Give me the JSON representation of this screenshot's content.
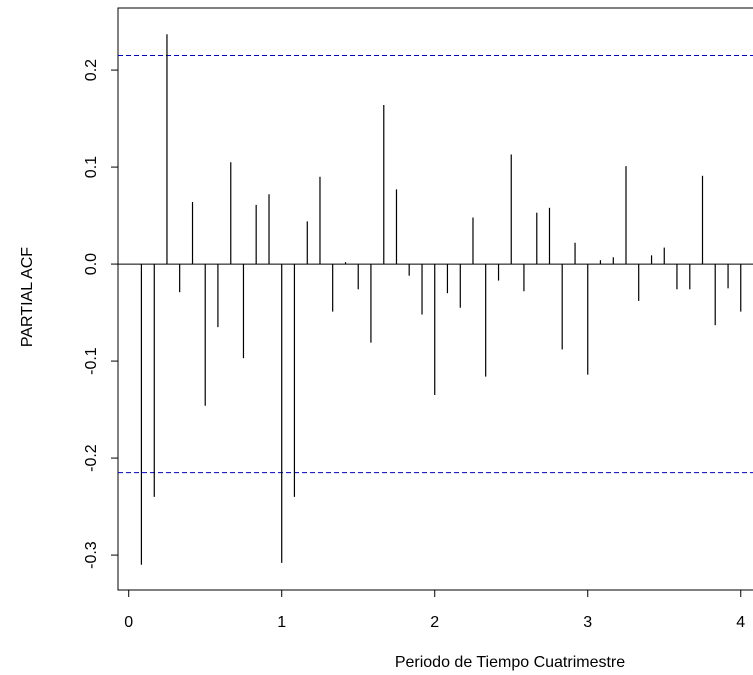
{
  "chart_data": {
    "type": "bar",
    "x_label": "Periodo de Tiempo Cuatrimestre",
    "y_label": "PARTIAL ACF",
    "x": [
      0.083,
      0.167,
      0.25,
      0.333,
      0.417,
      0.5,
      0.583,
      0.667,
      0.75,
      0.833,
      0.917,
      1.0,
      1.083,
      1.167,
      1.25,
      1.333,
      1.417,
      1.5,
      1.583,
      1.667,
      1.75,
      1.833,
      1.917,
      2.0,
      2.083,
      2.167,
      2.25,
      2.333,
      2.417,
      2.5,
      2.583,
      2.667,
      2.75,
      2.833,
      2.917,
      3.0,
      3.083,
      3.167,
      3.25,
      3.333,
      3.417,
      3.5,
      3.583,
      3.667,
      3.75,
      3.833,
      3.917,
      4.0
    ],
    "values": [
      -0.31,
      -0.24,
      0.237,
      -0.029,
      0.064,
      -0.146,
      -0.065,
      0.105,
      -0.097,
      0.061,
      0.072,
      -0.308,
      -0.24,
      0.044,
      0.09,
      -0.049,
      0.002,
      -0.026,
      -0.081,
      0.164,
      0.077,
      -0.012,
      -0.052,
      -0.135,
      -0.03,
      -0.045,
      0.048,
      -0.116,
      -0.017,
      0.113,
      -0.028,
      0.053,
      0.058,
      -0.088,
      0.022,
      -0.114,
      0.004,
      0.007,
      0.101,
      -0.038,
      0.009,
      0.017,
      -0.026,
      -0.026,
      0.091,
      -0.063,
      -0.025,
      -0.049
    ],
    "color": "#000000",
    "ci_bounds": [
      0.215,
      -0.215
    ],
    "ci_color": "#0000cc",
    "xlim": [
      -0.07,
      4.08
    ],
    "ylim": [
      -0.336,
      0.264
    ],
    "xticks": [
      0,
      1,
      2,
      3,
      4
    ],
    "yticks": [
      {
        "value": -0.3,
        "label": "-0.3"
      },
      {
        "value": -0.2,
        "label": "-0.2"
      },
      {
        "value": -0.1,
        "label": "-0.1"
      },
      {
        "value": 0,
        "label": "0.0"
      },
      {
        "value": 0.1,
        "label": "0.1"
      },
      {
        "value": 0.2,
        "label": "0.2"
      }
    ]
  }
}
